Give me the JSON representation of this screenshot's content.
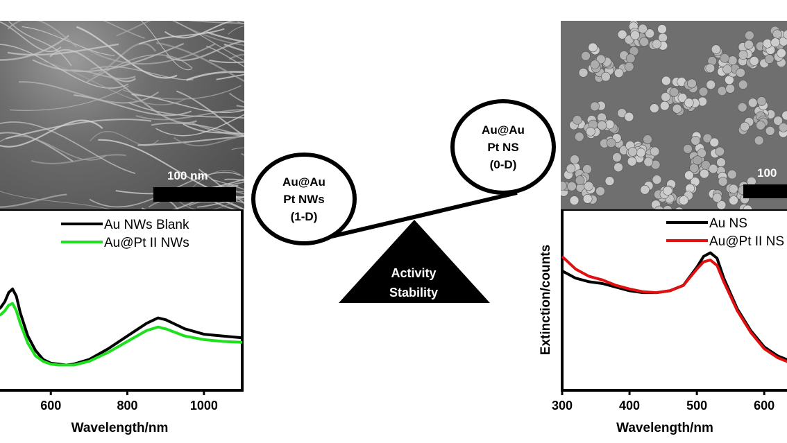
{
  "left_panel": {
    "sem_scale_label": "100 nm",
    "chart_data": {
      "type": "line",
      "xlabel": "Wavelength/nm",
      "ylabel": "",
      "xlim": [
        460,
        1100
      ],
      "ylim": [
        0,
        1
      ],
      "x_ticks": [
        600,
        800,
        1000
      ],
      "series": [
        {
          "name": "Au NWs Blank",
          "color": "#000000",
          "x": [
            460,
            470,
            480,
            490,
            500,
            510,
            520,
            540,
            560,
            580,
            600,
            620,
            640,
            660,
            700,
            750,
            800,
            850,
            880,
            900,
            950,
            1000,
            1050,
            1100
          ],
          "y": [
            0.44,
            0.46,
            0.49,
            0.54,
            0.56,
            0.52,
            0.43,
            0.3,
            0.22,
            0.17,
            0.15,
            0.145,
            0.14,
            0.145,
            0.17,
            0.23,
            0.3,
            0.37,
            0.4,
            0.39,
            0.34,
            0.31,
            0.3,
            0.29
          ]
        },
        {
          "name": "Au@Pt II NWs",
          "color": "#1fe01f",
          "x": [
            460,
            470,
            480,
            490,
            500,
            510,
            520,
            540,
            560,
            580,
            600,
            620,
            640,
            660,
            700,
            750,
            800,
            850,
            880,
            900,
            950,
            1000,
            1050,
            1100
          ],
          "y": [
            0.41,
            0.42,
            0.44,
            0.47,
            0.48,
            0.44,
            0.37,
            0.26,
            0.19,
            0.16,
            0.145,
            0.14,
            0.14,
            0.14,
            0.16,
            0.21,
            0.27,
            0.33,
            0.35,
            0.34,
            0.3,
            0.28,
            0.27,
            0.265
          ]
        }
      ]
    }
  },
  "center": {
    "left_circle_lines": [
      "Au@Au",
      "Pt NWs",
      "(1-D)"
    ],
    "right_circle_lines": [
      "Au@Au",
      "Pt NS",
      "(0-D)"
    ],
    "triangle_lines": [
      "Activity",
      "Stability"
    ]
  },
  "right_panel": {
    "sem_scale_label": "100",
    "chart_data": {
      "type": "line",
      "xlabel": "Wavelength/nm",
      "ylabel": "Extinction/counts",
      "xlim": [
        300,
        640
      ],
      "ylim": [
        0,
        1
      ],
      "x_ticks": [
        300,
        400,
        500,
        600
      ],
      "series": [
        {
          "name": "Au NS",
          "color": "#000000",
          "x": [
            300,
            320,
            340,
            360,
            380,
            400,
            420,
            440,
            460,
            480,
            500,
            510,
            520,
            530,
            540,
            560,
            580,
            600,
            620,
            640
          ],
          "y": [
            0.66,
            0.62,
            0.6,
            0.59,
            0.57,
            0.55,
            0.54,
            0.54,
            0.55,
            0.58,
            0.68,
            0.74,
            0.76,
            0.73,
            0.62,
            0.45,
            0.33,
            0.24,
            0.19,
            0.16
          ]
        },
        {
          "name": "Au@Pt II NS",
          "color": "#e01010",
          "x": [
            300,
            320,
            340,
            360,
            380,
            400,
            420,
            440,
            460,
            480,
            500,
            510,
            520,
            530,
            540,
            560,
            580,
            600,
            620,
            640
          ],
          "y": [
            0.74,
            0.67,
            0.63,
            0.61,
            0.58,
            0.56,
            0.545,
            0.54,
            0.55,
            0.58,
            0.67,
            0.71,
            0.72,
            0.69,
            0.6,
            0.44,
            0.32,
            0.23,
            0.18,
            0.15
          ]
        }
      ]
    }
  }
}
